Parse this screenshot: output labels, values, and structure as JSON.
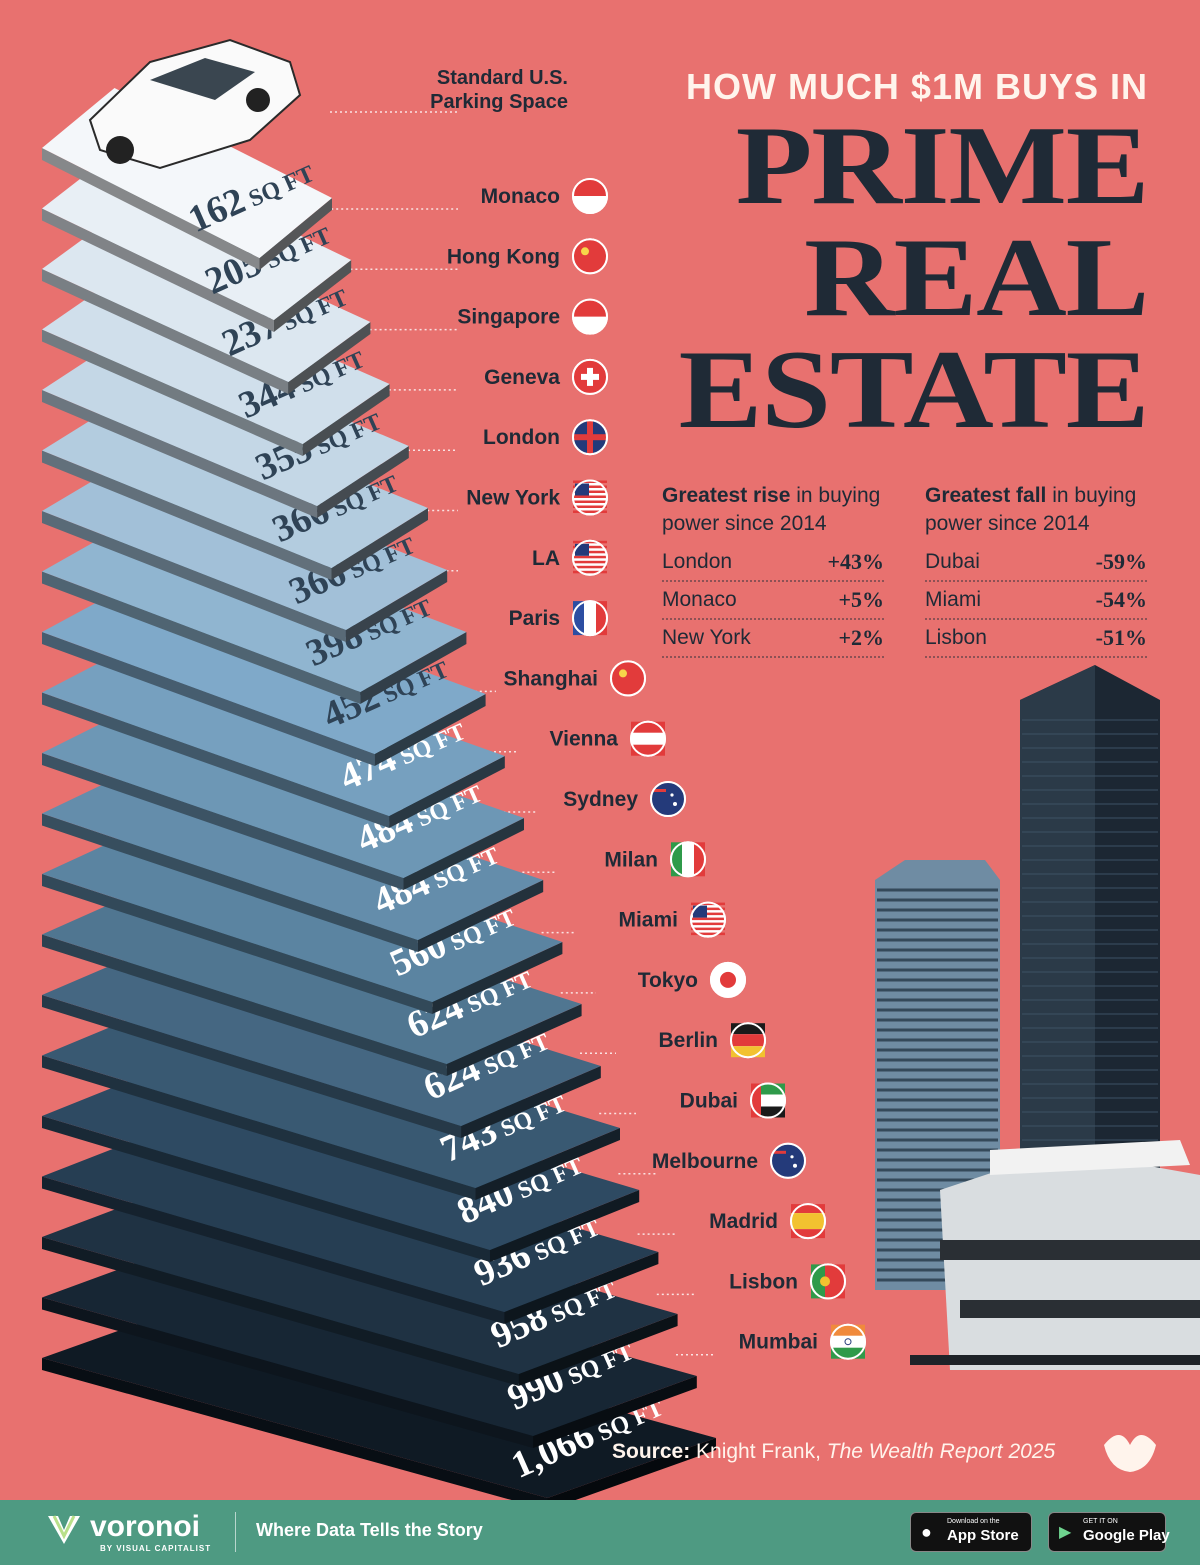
{
  "header": {
    "pre_title": "HOW MUCH $1M BUYS IN",
    "title_lines": [
      "PRIME",
      "REAL",
      "ESTATE"
    ]
  },
  "reference": {
    "label_line1": "Standard U.S.",
    "label_line2": "Parking Space",
    "area": "162 SQ FT",
    "value": 162
  },
  "unit": "SQ FT",
  "cities": [
    {
      "name": "Monaco",
      "area": "205",
      "flag": "monaco-flag"
    },
    {
      "name": "Hong Kong",
      "area": "237",
      "flag": "hong-kong-flag"
    },
    {
      "name": "Singapore",
      "area": "344",
      "flag": "singapore-flag"
    },
    {
      "name": "Geneva",
      "area": "355",
      "flag": "switzerland-flag"
    },
    {
      "name": "London",
      "area": "366",
      "flag": "uk-flag"
    },
    {
      "name": "New York",
      "area": "366",
      "flag": "usa-flag"
    },
    {
      "name": "LA",
      "area": "398",
      "flag": "usa-flag"
    },
    {
      "name": "Paris",
      "area": "452",
      "flag": "france-flag"
    },
    {
      "name": "Shanghai",
      "area": "474",
      "flag": "china-flag"
    },
    {
      "name": "Vienna",
      "area": "484",
      "flag": "austria-flag"
    },
    {
      "name": "Sydney",
      "area": "484",
      "flag": "australia-flag"
    },
    {
      "name": "Milan",
      "area": "560",
      "flag": "italy-flag"
    },
    {
      "name": "Miami",
      "area": "624",
      "flag": "usa-flag"
    },
    {
      "name": "Tokyo",
      "area": "624",
      "flag": "japan-flag"
    },
    {
      "name": "Berlin",
      "area": "743",
      "flag": "germany-flag"
    },
    {
      "name": "Dubai",
      "area": "840",
      "flag": "uae-flag"
    },
    {
      "name": "Melbourne",
      "area": "936",
      "flag": "australia-flag"
    },
    {
      "name": "Madrid",
      "area": "958",
      "flag": "spain-flag"
    },
    {
      "name": "Lisbon",
      "area": "990",
      "flag": "portugal-flag"
    },
    {
      "name": "Mumbai",
      "area": "1,066",
      "flag": "india-flag"
    }
  ],
  "rise": {
    "head_bold": "Greatest rise",
    "head_rest": " in buying power since 2014",
    "rows": [
      {
        "city": "London",
        "value": "+43%"
      },
      {
        "city": "Monaco",
        "value": "+5%"
      },
      {
        "city": "New York",
        "value": "+2%"
      }
    ]
  },
  "fall": {
    "head_bold": "Greatest fall",
    "head_rest": " in buying power since 2014",
    "rows": [
      {
        "city": "Dubai",
        "value": "-59%"
      },
      {
        "city": "Miami",
        "value": "-54%"
      },
      {
        "city": "Lisbon",
        "value": "-51%"
      }
    ]
  },
  "source": {
    "label": "Source:",
    "publisher": "Knight Frank, ",
    "title": "The Wealth Report 2025"
  },
  "footer": {
    "brand": "voronoi",
    "brand_sub": "BY VISUAL CAPITALIST",
    "tagline": "Where Data Tells the Story",
    "app_store_small": "Download on the",
    "app_store_big": "App Store",
    "google_small": "GET IT ON",
    "google_big": "Google Play"
  },
  "colors": {
    "background": "#e8716f",
    "ink": "#1f2a36",
    "footer": "#4e9a82",
    "cream": "#fff4ec"
  }
}
